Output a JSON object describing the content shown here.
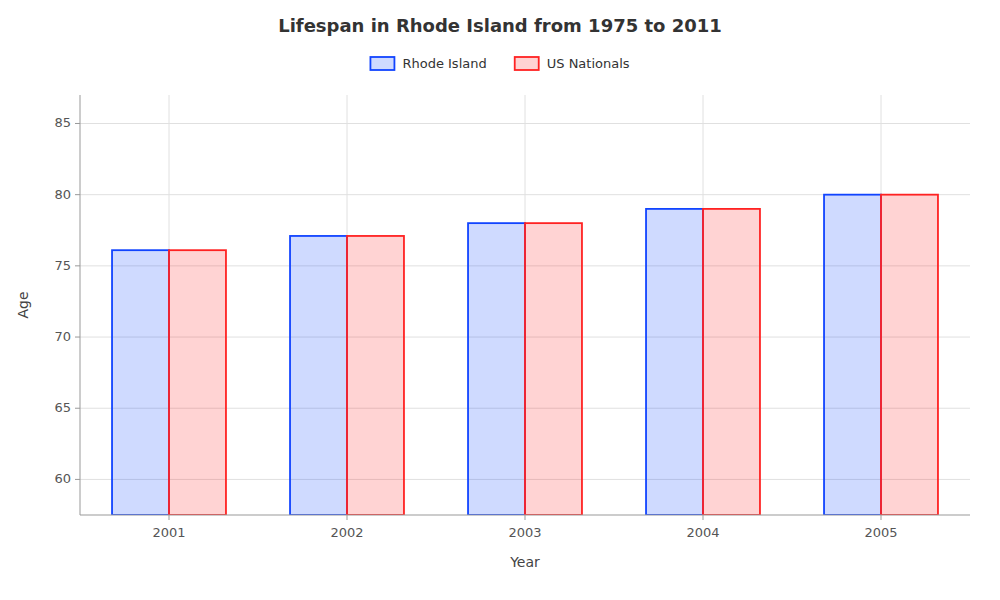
{
  "chart_data": {
    "type": "bar",
    "title": "Lifespan in Rhode Island from 1975 to 2011",
    "x_label": "Year",
    "y_label": "Age",
    "categories": [
      "2001",
      "2002",
      "2003",
      "2004",
      "2005"
    ],
    "series": [
      {
        "name": "Rhode Island",
        "color": "#1144ff",
        "values": [
          76.1,
          77.1,
          78.0,
          79.0,
          80.0
        ]
      },
      {
        "name": "US Nationals",
        "color": "#ff2222",
        "values": [
          76.1,
          77.1,
          78.0,
          79.0,
          80.0
        ]
      }
    ],
    "ylim": [
      57.5,
      87
    ],
    "yticks": [
      60,
      65,
      70,
      75,
      80,
      85
    ],
    "grid": true,
    "legend": "top"
  }
}
